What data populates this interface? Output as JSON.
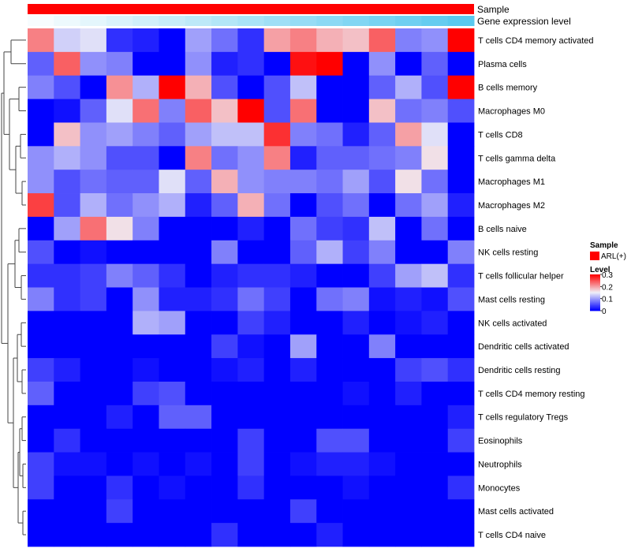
{
  "chart_data": {
    "type": "heatmap",
    "title": "",
    "annotation_tracks": [
      {
        "name": "Sample",
        "kind": "categorical",
        "values": [
          "ARL(+)"
        ]
      },
      {
        "name": "Gene expression level",
        "kind": "gradient",
        "from_color": "#f7fcfe",
        "to_color": "#5bc9ef"
      }
    ],
    "rows": [
      "T cells CD4 memory activated",
      "Plasma cells",
      "B cells memory",
      "Macrophages M0",
      "T cells CD8",
      "T cells gamma delta",
      "Macrophages M1",
      "Macrophages M2",
      "B cells naive",
      "NK cells resting",
      "T cells follicular helper",
      "Mast cells resting",
      "NK cells activated",
      "Dendritic cells activated",
      "Dendritic cells resting",
      "T cells CD4 memory resting",
      "T cells regulatory  Tregs",
      "Eosinophils",
      "Neutrophils",
      "Monocytes",
      "Mast cells activated",
      "T cells CD4 naive"
    ],
    "column_count": 17,
    "values": [
      [
        0.22,
        0.13,
        0.14,
        0.03,
        0.02,
        0.0,
        0.1,
        0.07,
        0.03,
        0.2,
        0.22,
        0.19,
        0.18,
        0.24,
        0.08,
        0.09,
        0.3
      ],
      [
        0.06,
        0.24,
        0.09,
        0.08,
        0.0,
        0.0,
        0.09,
        0.02,
        0.03,
        0.0,
        0.29,
        0.3,
        0.0,
        0.09,
        0.0,
        0.06,
        0.0
      ],
      [
        0.08,
        0.05,
        0.0,
        0.21,
        0.11,
        0.3,
        0.19,
        0.05,
        0.0,
        0.05,
        0.12,
        0.0,
        0.0,
        0.06,
        0.11,
        0.05,
        0.3
      ],
      [
        0.0,
        0.01,
        0.06,
        0.14,
        0.23,
        0.08,
        0.24,
        0.18,
        0.3,
        0.05,
        0.23,
        0.0,
        0.0,
        0.18,
        0.07,
        0.08,
        0.05
      ],
      [
        0.0,
        0.18,
        0.09,
        0.1,
        0.08,
        0.06,
        0.1,
        0.12,
        0.12,
        0.27,
        0.08,
        0.07,
        0.02,
        0.06,
        0.2,
        0.14,
        0.0
      ],
      [
        0.09,
        0.11,
        0.09,
        0.05,
        0.05,
        0.0,
        0.22,
        0.07,
        0.09,
        0.22,
        0.02,
        0.06,
        0.06,
        0.07,
        0.08,
        0.16,
        0.0
      ],
      [
        0.09,
        0.05,
        0.07,
        0.06,
        0.06,
        0.14,
        0.06,
        0.19,
        0.09,
        0.08,
        0.08,
        0.07,
        0.1,
        0.05,
        0.16,
        0.07,
        0.0
      ],
      [
        0.26,
        0.05,
        0.11,
        0.07,
        0.09,
        0.11,
        0.02,
        0.06,
        0.19,
        0.07,
        0.0,
        0.05,
        0.07,
        0.0,
        0.07,
        0.1,
        0.02
      ],
      [
        0.0,
        0.1,
        0.23,
        0.16,
        0.08,
        0.0,
        0.0,
        0.0,
        0.02,
        0.0,
        0.07,
        0.04,
        0.03,
        0.12,
        0.0,
        0.07,
        0.0
      ],
      [
        0.05,
        0.0,
        0.01,
        0.0,
        0.0,
        0.0,
        0.0,
        0.08,
        0.0,
        0.0,
        0.06,
        0.11,
        0.04,
        0.08,
        0.0,
        0.0,
        0.08
      ],
      [
        0.03,
        0.03,
        0.04,
        0.08,
        0.06,
        0.03,
        0.0,
        0.02,
        0.03,
        0.03,
        0.02,
        0.0,
        0.0,
        0.04,
        0.1,
        0.12,
        0.03
      ],
      [
        0.08,
        0.03,
        0.04,
        0.0,
        0.09,
        0.02,
        0.02,
        0.03,
        0.07,
        0.04,
        0.0,
        0.07,
        0.08,
        0.01,
        0.02,
        0.01,
        0.05
      ],
      [
        0.0,
        0.0,
        0.0,
        0.0,
        0.11,
        0.1,
        0.0,
        0.0,
        0.04,
        0.02,
        0.0,
        0.0,
        0.02,
        0.0,
        0.01,
        0.02,
        0.0
      ],
      [
        0.0,
        0.0,
        0.0,
        0.0,
        0.0,
        0.0,
        0.0,
        0.04,
        0.01,
        0.0,
        0.1,
        0.0,
        0.0,
        0.08,
        0.0,
        0.0,
        0.0
      ],
      [
        0.04,
        0.02,
        0.0,
        0.0,
        0.01,
        0.0,
        0.0,
        0.01,
        0.02,
        0.0,
        0.02,
        0.0,
        0.0,
        0.0,
        0.04,
        0.05,
        0.03
      ],
      [
        0.06,
        0.0,
        0.0,
        0.0,
        0.04,
        0.05,
        0.0,
        0.0,
        0.0,
        0.0,
        0.0,
        0.0,
        0.01,
        0.0,
        0.02,
        0.0,
        0.0
      ],
      [
        0.0,
        0.0,
        0.0,
        0.02,
        0.0,
        0.06,
        0.06,
        0.0,
        0.0,
        0.0,
        0.0,
        0.0,
        0.0,
        0.0,
        0.0,
        0.0,
        0.02
      ],
      [
        0.0,
        0.03,
        0.0,
        0.0,
        0.0,
        0.0,
        0.0,
        0.0,
        0.04,
        0.0,
        0.0,
        0.05,
        0.05,
        0.0,
        0.0,
        0.0,
        0.04
      ],
      [
        0.04,
        0.01,
        0.01,
        0.0,
        0.01,
        0.0,
        0.01,
        0.0,
        0.04,
        0.0,
        0.01,
        0.02,
        0.02,
        0.01,
        0.0,
        0.0,
        0.0
      ],
      [
        0.04,
        0.0,
        0.0,
        0.03,
        0.0,
        0.01,
        0.0,
        0.0,
        0.03,
        0.0,
        0.0,
        0.0,
        0.01,
        0.0,
        0.0,
        0.0,
        0.03
      ],
      [
        0.0,
        0.0,
        0.0,
        0.04,
        0.0,
        0.0,
        0.0,
        0.0,
        0.0,
        0.0,
        0.04,
        0.0,
        0.0,
        0.0,
        0.0,
        0.0,
        0.0
      ],
      [
        0.0,
        0.0,
        0.0,
        0.0,
        0.0,
        0.0,
        0.0,
        0.03,
        0.0,
        0.0,
        0.0,
        0.02,
        0.0,
        0.0,
        0.0,
        0.0,
        0.0
      ]
    ],
    "color_scale": {
      "min": 0,
      "mid": 0.15,
      "max": 0.3,
      "low_color": "#0000ff",
      "mid_color": "#f0f0f8",
      "high_color": "#ff0000"
    },
    "legend": {
      "sample_title": "Sample",
      "sample_entry": "ARL(+)",
      "sample_color": "#ff0000",
      "level_title": "Level",
      "ticks": [
        "0.3",
        "0.2",
        "0.1",
        "0"
      ],
      "tick_values": [
        0.3,
        0.2,
        0.1,
        0
      ],
      "placement": "right"
    },
    "dendrogram": "row clustering (left side)"
  }
}
